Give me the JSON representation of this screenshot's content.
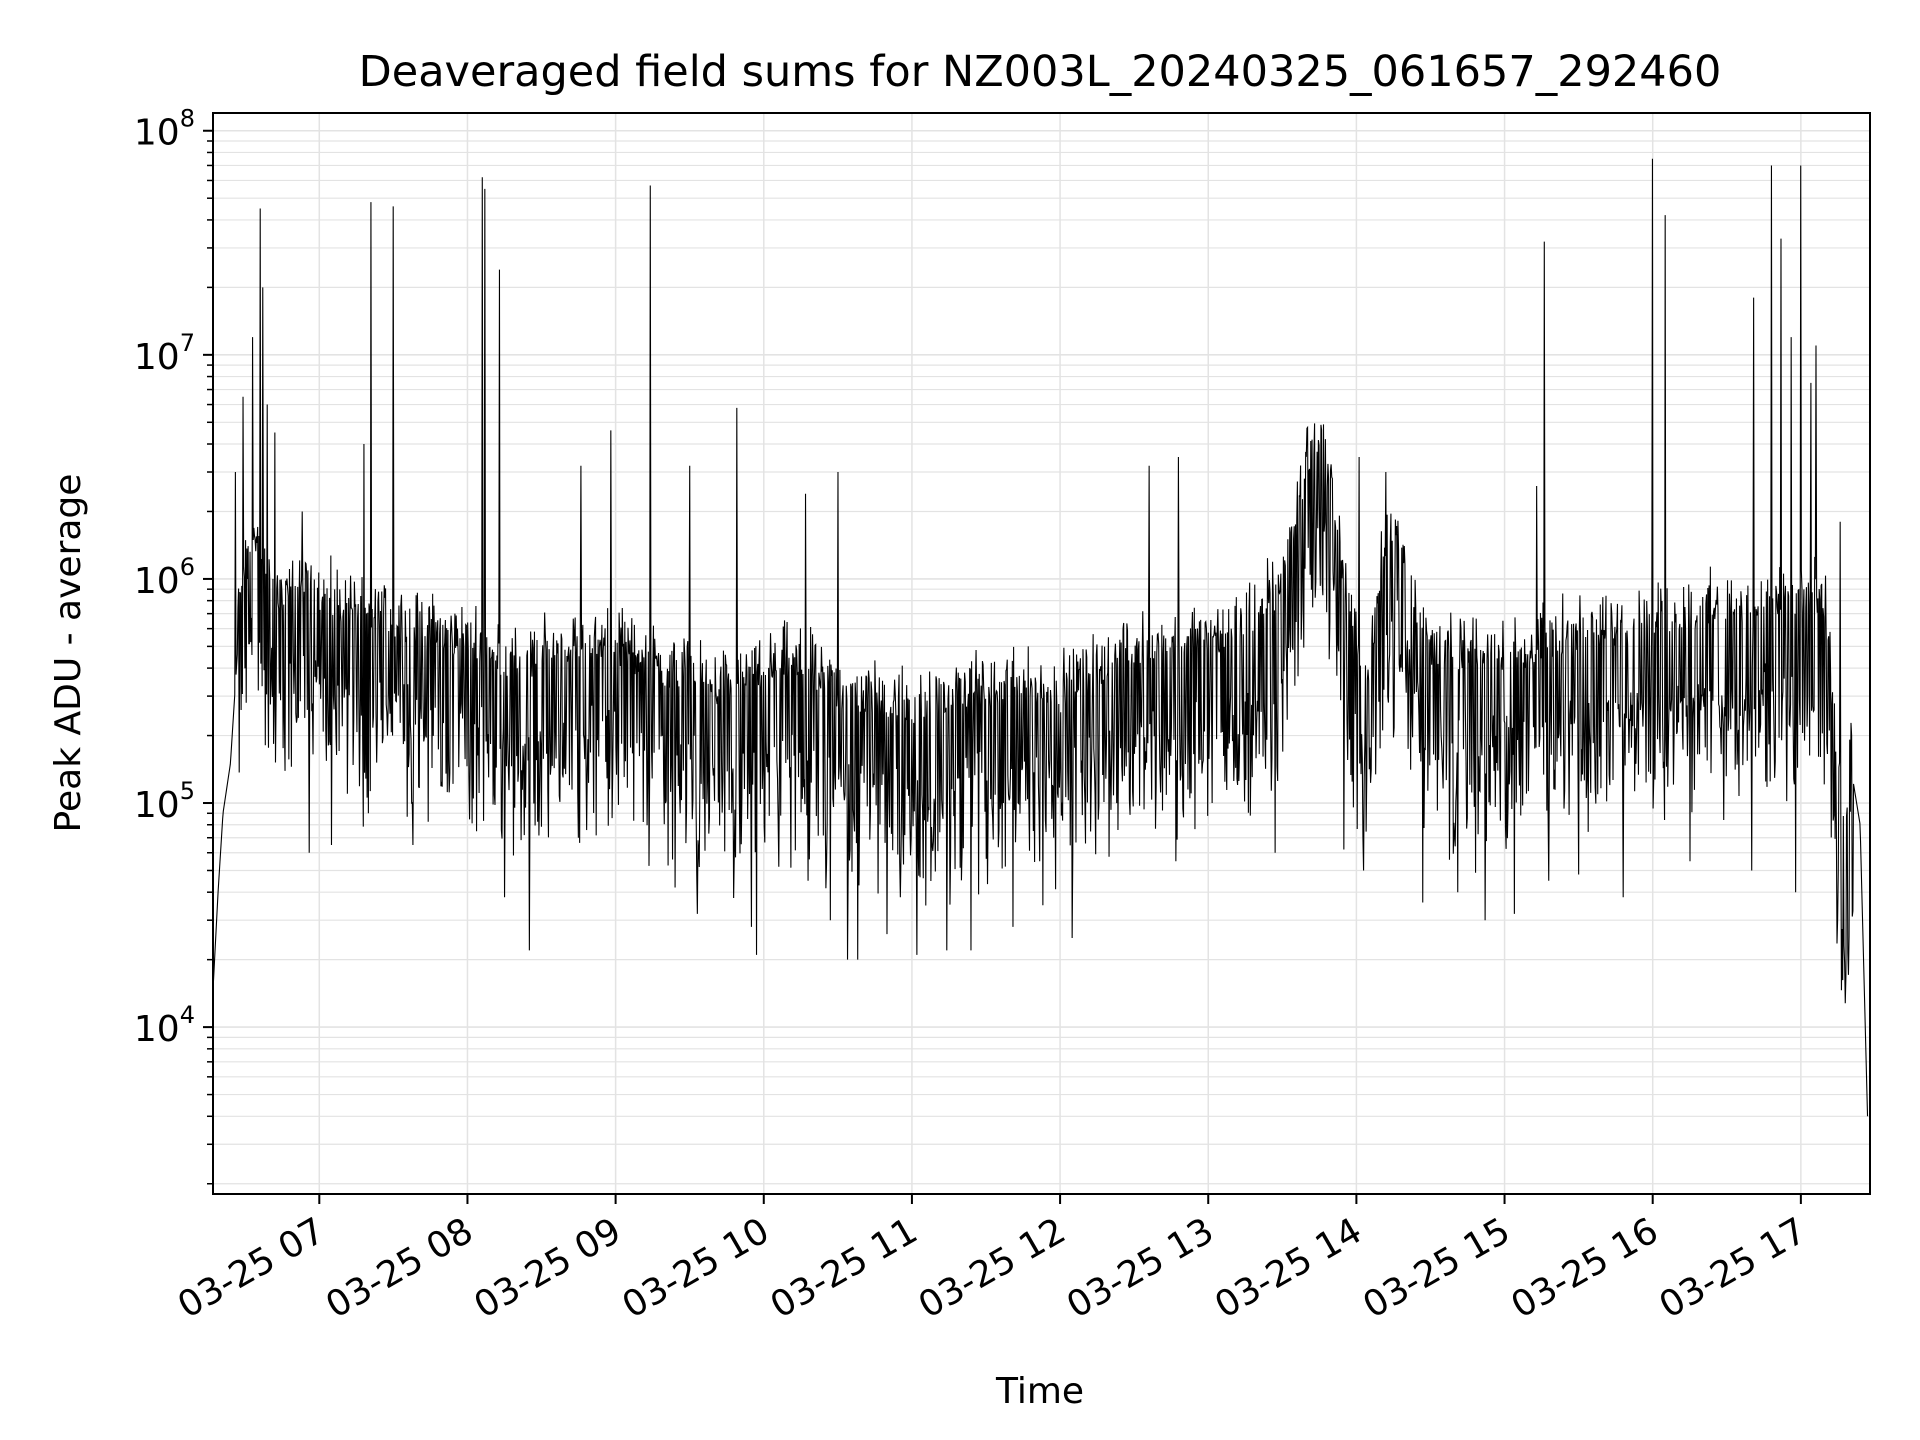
{
  "chart_data": {
    "type": "line",
    "title": "Deaveraged field sums for NZ003L_20240325_061657_292460",
    "xlabel": "Time",
    "ylabel": "Peak ADU - average",
    "yscale": "log",
    "grid": true,
    "line_color": "#000000",
    "grid_color": "#e3e3e3",
    "x_range": [
      "03-25 06:16:57",
      "03-25 17:28:00"
    ],
    "y_range": [
      1800,
      120000000
    ],
    "x_ticks": [
      {
        "t": "03-25 07:00",
        "label": "03-25 07"
      },
      {
        "t": "03-25 08:00",
        "label": "03-25 08"
      },
      {
        "t": "03-25 09:00",
        "label": "03-25 09"
      },
      {
        "t": "03-25 10:00",
        "label": "03-25 10"
      },
      {
        "t": "03-25 11:00",
        "label": "03-25 11"
      },
      {
        "t": "03-25 12:00",
        "label": "03-25 12"
      },
      {
        "t": "03-25 13:00",
        "label": "03-25 13"
      },
      {
        "t": "03-25 14:00",
        "label": "03-25 14"
      },
      {
        "t": "03-25 15:00",
        "label": "03-25 15"
      },
      {
        "t": "03-25 16:00",
        "label": "03-25 16"
      },
      {
        "t": "03-25 17:00",
        "label": "03-25 17"
      }
    ],
    "y_ticks": [
      {
        "value": 10000,
        "base": "10",
        "exp": "4"
      },
      {
        "value": 100000,
        "base": "10",
        "exp": "5"
      },
      {
        "value": 1000000,
        "base": "10",
        "exp": "6"
      },
      {
        "value": 10000000,
        "base": "10",
        "exp": "7"
      },
      {
        "value": 100000000,
        "base": "10",
        "exp": "8"
      }
    ],
    "series": [
      {
        "points": [
          [
            "03-25 06:17",
            15000
          ],
          [
            "03-25 06:19",
            40000
          ],
          [
            "03-25 06:21",
            90000
          ],
          [
            "03-25 06:24",
            150000
          ],
          [
            "03-25 06:27",
            500000
          ],
          [
            "03-25 06:30",
            900000
          ],
          [
            "03-25 06:33",
            1200000
          ],
          [
            "03-25 06:36",
            900000
          ],
          [
            "03-25 06:40",
            700000
          ],
          [
            "03-25 06:45",
            600000
          ],
          [
            "03-25 06:50",
            650000
          ],
          [
            "03-25 07:00",
            600000
          ],
          [
            "03-25 07:10",
            550000
          ],
          [
            "03-25 07:20",
            500000
          ],
          [
            "03-25 07:30",
            450000
          ],
          [
            "03-25 07:40",
            420000
          ],
          [
            "03-25 07:50",
            400000
          ],
          [
            "03-25 08:00",
            380000
          ],
          [
            "03-25 08:10",
            330000
          ],
          [
            "03-25 08:20",
            300000
          ],
          [
            "03-25 08:30",
            320000
          ],
          [
            "03-25 08:40",
            350000
          ],
          [
            "03-25 08:50",
            380000
          ],
          [
            "03-25 09:00",
            360000
          ],
          [
            "03-25 09:10",
            320000
          ],
          [
            "03-25 09:20",
            280000
          ],
          [
            "03-25 09:30",
            260000
          ],
          [
            "03-25 09:40",
            240000
          ],
          [
            "03-25 09:50",
            250000
          ],
          [
            "03-25 10:00",
            280000
          ],
          [
            "03-25 10:10",
            300000
          ],
          [
            "03-25 10:20",
            280000
          ],
          [
            "03-25 10:30",
            230000
          ],
          [
            "03-25 10:40",
            210000
          ],
          [
            "03-25 10:50",
            200000
          ],
          [
            "03-25 11:00",
            190000
          ],
          [
            "03-25 11:10",
            200000
          ],
          [
            "03-25 11:20",
            220000
          ],
          [
            "03-25 11:30",
            230000
          ],
          [
            "03-25 11:40",
            240000
          ],
          [
            "03-25 11:50",
            230000
          ],
          [
            "03-25 12:00",
            220000
          ],
          [
            "03-25 12:10",
            260000
          ],
          [
            "03-25 12:20",
            300000
          ],
          [
            "03-25 12:30",
            330000
          ],
          [
            "03-25 12:40",
            360000
          ],
          [
            "03-25 12:50",
            400000
          ],
          [
            "03-25 13:00",
            380000
          ],
          [
            "03-25 13:10",
            420000
          ],
          [
            "03-25 13:20",
            500000
          ],
          [
            "03-25 13:30",
            700000
          ],
          [
            "03-25 13:35",
            1200000
          ],
          [
            "03-25 13:40",
            2500000
          ],
          [
            "03-25 13:45",
            3000000
          ],
          [
            "03-25 13:50",
            1800000
          ],
          [
            "03-25 13:55",
            700000
          ],
          [
            "03-25 14:00",
            350000
          ],
          [
            "03-25 14:05",
            250000
          ],
          [
            "03-25 14:10",
            800000
          ],
          [
            "03-25 14:15",
            1200000
          ],
          [
            "03-25 14:20",
            900000
          ],
          [
            "03-25 14:25",
            500000
          ],
          [
            "03-25 14:30",
            350000
          ],
          [
            "03-25 14:40",
            330000
          ],
          [
            "03-25 14:50",
            320000
          ],
          [
            "03-25 15:00",
            330000
          ],
          [
            "03-25 15:10",
            350000
          ],
          [
            "03-25 15:20",
            380000
          ],
          [
            "03-25 15:30",
            400000
          ],
          [
            "03-25 15:40",
            420000
          ],
          [
            "03-25 15:50",
            440000
          ],
          [
            "03-25 16:00",
            460000
          ],
          [
            "03-25 16:10",
            480000
          ],
          [
            "03-25 16:20",
            500000
          ],
          [
            "03-25 16:30",
            520000
          ],
          [
            "03-25 16:40",
            540000
          ],
          [
            "03-25 16:50",
            560000
          ],
          [
            "03-25 17:00",
            580000
          ],
          [
            "03-25 17:05",
            600000
          ],
          [
            "03-25 17:10",
            500000
          ],
          [
            "03-25 17:15",
            100000
          ],
          [
            "03-25 17:18",
            40000
          ],
          [
            "03-25 17:20",
            150000
          ],
          [
            "03-25 17:24",
            80000
          ],
          [
            "03-25 17:27",
            4000
          ]
        ],
        "spikes": [
          [
            "03-25 06:26",
            3000000
          ],
          [
            "03-25 06:29",
            6500000
          ],
          [
            "03-25 06:31",
            1000000
          ],
          [
            "03-25 06:33",
            12000000
          ],
          [
            "03-25 06:36",
            45000000
          ],
          [
            "03-25 06:37",
            20000000
          ],
          [
            "03-25 06:39",
            6000000
          ],
          [
            "03-25 06:42",
            4500000
          ],
          [
            "03-25 06:53",
            2000000
          ],
          [
            "03-25 07:18",
            4000000
          ],
          [
            "03-25 07:21",
            48000000
          ],
          [
            "03-25 07:30",
            46000000
          ],
          [
            "03-25 08:06",
            62000000
          ],
          [
            "03-25 08:07",
            55000000
          ],
          [
            "03-25 08:13",
            24000000
          ],
          [
            "03-25 08:46",
            3200000
          ],
          [
            "03-25 08:58",
            4600000
          ],
          [
            "03-25 09:14",
            57000000
          ],
          [
            "03-25 09:30",
            3200000
          ],
          [
            "03-25 09:49",
            5800000
          ],
          [
            "03-25 10:17",
            2400000
          ],
          [
            "03-25 10:30",
            3000000
          ],
          [
            "03-25 12:36",
            3200000
          ],
          [
            "03-25 12:48",
            3500000
          ],
          [
            "03-25 13:40",
            4700000
          ],
          [
            "03-25 14:01",
            3500000
          ],
          [
            "03-25 14:12",
            3000000
          ],
          [
            "03-25 14:27",
            2800000
          ],
          [
            "03-25 15:13",
            2600000
          ],
          [
            "03-25 15:16",
            32000000
          ],
          [
            "03-25 16:00",
            75000000
          ],
          [
            "03-25 16:05",
            42000000
          ],
          [
            "03-25 16:41",
            18000000
          ],
          [
            "03-25 16:48",
            70000000
          ],
          [
            "03-25 16:52",
            33000000
          ],
          [
            "03-25 16:56",
            12000000
          ],
          [
            "03-25 17:00",
            70000000
          ],
          [
            "03-25 17:04",
            7500000
          ],
          [
            "03-25 17:06",
            11000000
          ],
          [
            "03-25 17:16",
            1800000
          ]
        ],
        "dips": [
          [
            "03-25 06:56",
            60000
          ],
          [
            "03-25 07:05",
            65000
          ],
          [
            "03-25 07:20",
            90000
          ],
          [
            "03-25 07:38",
            65000
          ],
          [
            "03-25 08:15",
            38000
          ],
          [
            "03-25 08:25",
            22000
          ],
          [
            "03-25 08:45",
            70000
          ],
          [
            "03-25 09:24",
            42000
          ],
          [
            "03-25 09:33",
            32000
          ],
          [
            "03-25 09:55",
            28000
          ],
          [
            "03-25 09:57",
            21000
          ],
          [
            "03-25 10:18",
            45000
          ],
          [
            "03-25 10:27",
            30000
          ],
          [
            "03-25 10:34",
            20000
          ],
          [
            "03-25 10:38",
            20000
          ],
          [
            "03-25 10:50",
            26000
          ],
          [
            "03-25 11:02",
            21000
          ],
          [
            "03-25 11:14",
            22000
          ],
          [
            "03-25 11:24",
            22000
          ],
          [
            "03-25 11:41",
            28000
          ],
          [
            "03-25 11:53",
            35000
          ],
          [
            "03-25 12:05",
            25000
          ],
          [
            "03-25 12:47",
            55000
          ],
          [
            "03-25 13:27",
            60000
          ],
          [
            "03-25 13:55",
            62000
          ],
          [
            "03-25 14:03",
            50000
          ],
          [
            "03-25 14:27",
            36000
          ],
          [
            "03-25 14:41",
            40000
          ],
          [
            "03-25 14:52",
            30000
          ],
          [
            "03-25 15:04",
            32000
          ],
          [
            "03-25 15:18",
            45000
          ],
          [
            "03-25 15:30",
            48000
          ],
          [
            "03-25 15:48",
            38000
          ],
          [
            "03-25 16:15",
            55000
          ],
          [
            "03-25 16:40",
            50000
          ],
          [
            "03-25 16:58",
            40000
          ],
          [
            "03-25 17:21",
            33000
          ]
        ]
      }
    ]
  }
}
